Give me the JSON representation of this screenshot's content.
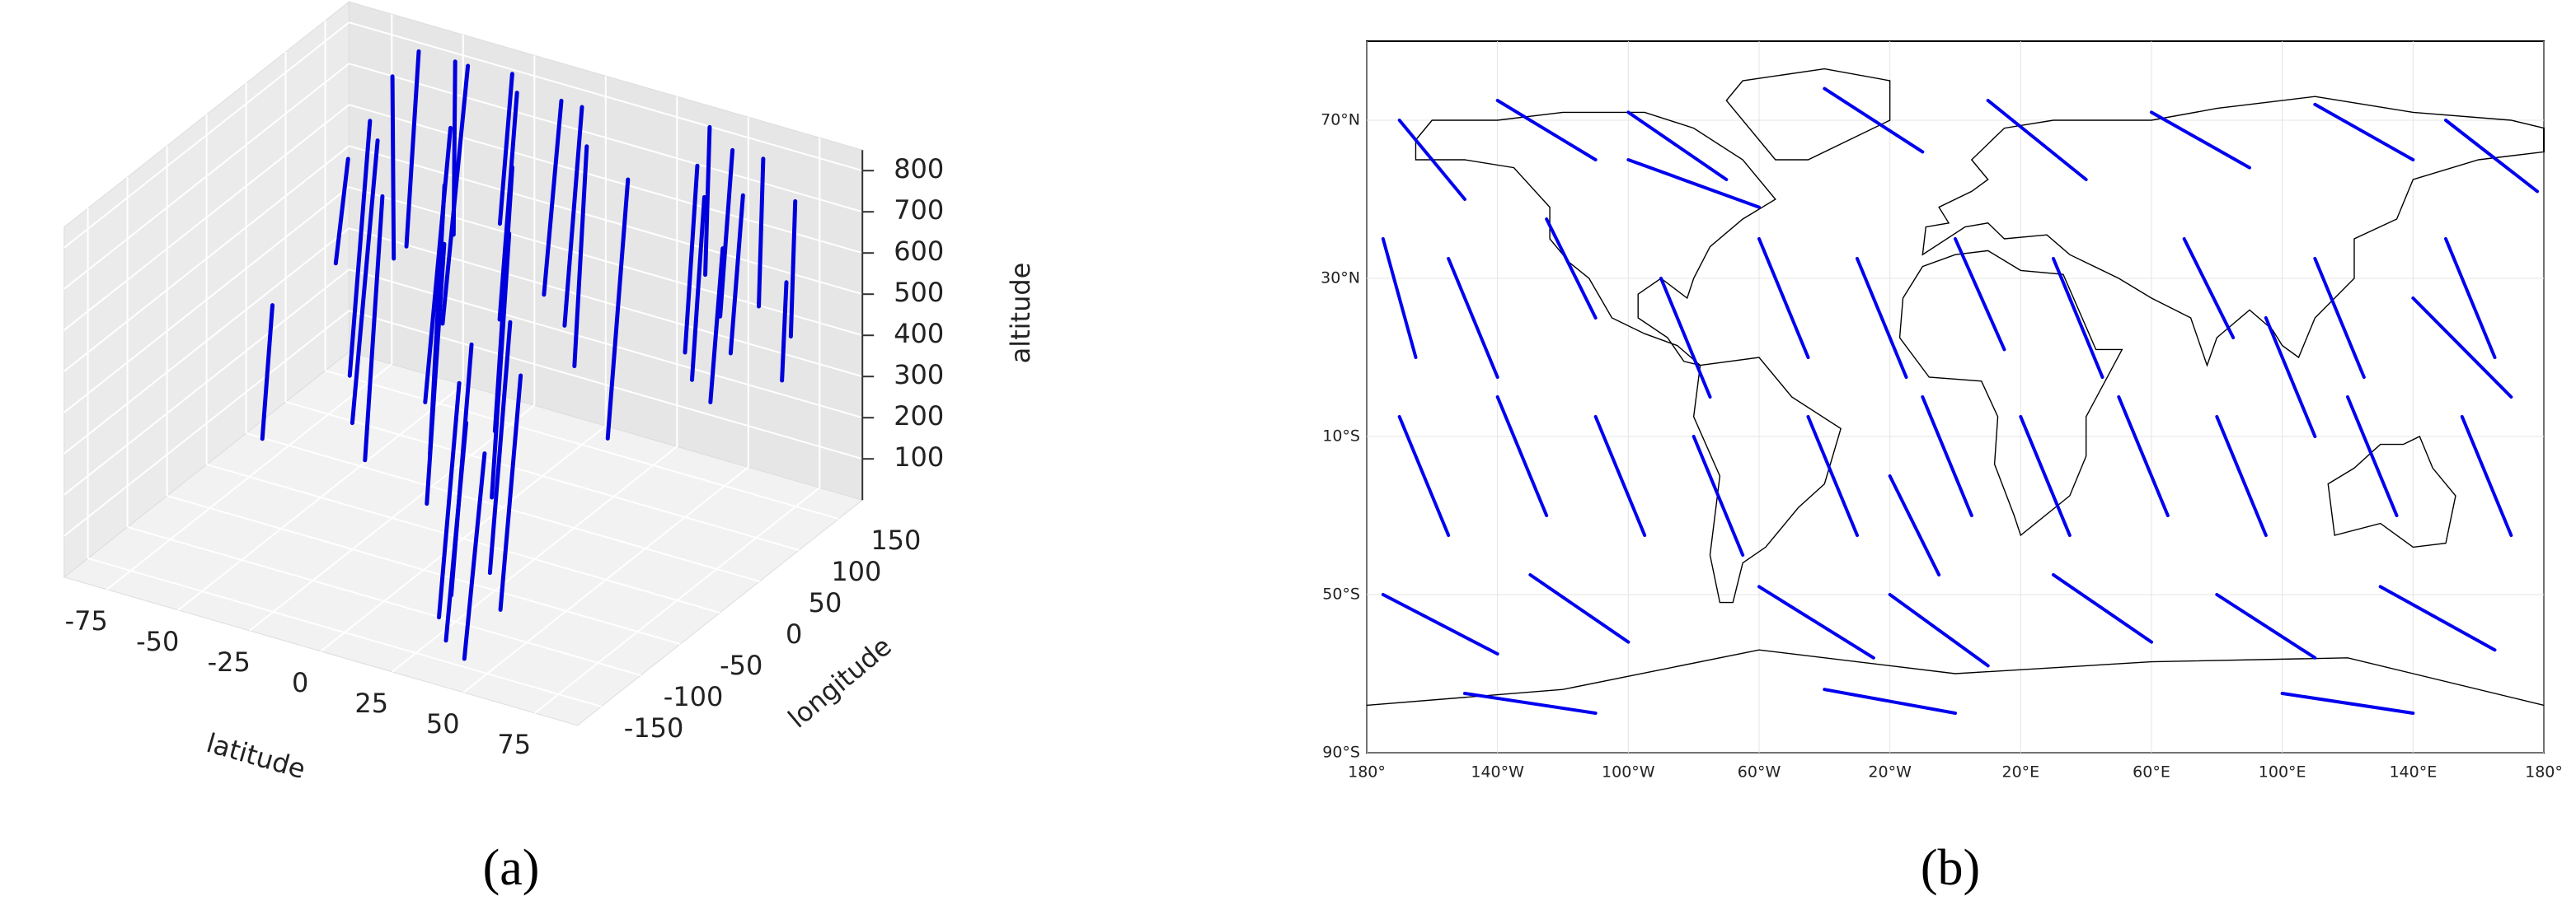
{
  "chart_data": [
    {
      "type": "line3d",
      "caption": "(a)",
      "xlabel": "latitude",
      "ylabel": "longitude",
      "zlabel": "altitude",
      "xlim": [
        -90,
        90
      ],
      "ylim": [
        -180,
        180
      ],
      "zlim": [
        0,
        850
      ],
      "xticks": [
        -75,
        -50,
        -25,
        0,
        25,
        50,
        75
      ],
      "yticks": [
        -150,
        -100,
        -50,
        0,
        50,
        100,
        150
      ],
      "zticks": [
        100,
        200,
        300,
        400,
        500,
        600,
        700,
        800
      ],
      "grid": true,
      "color": "#0000dd",
      "tracks": [
        {
          "lat": [
            -82,
            -78
          ],
          "lon": [
            150,
            120
          ],
          "alt": [
            530,
            330
          ]
        },
        {
          "lat": [
            -78,
            -76
          ],
          "lon": [
            40,
            20
          ],
          "alt": [
            350,
            60
          ]
        },
        {
          "lat": [
            -72,
            -66
          ],
          "lon": [
            170,
            150
          ],
          "alt": [
            720,
            320
          ]
        },
        {
          "lat": [
            -66,
            -62
          ],
          "lon": [
            120,
            80
          ],
          "alt": [
            700,
            150
          ]
        },
        {
          "lat": [
            -60,
            -56
          ],
          "lon": [
            160,
            130
          ],
          "alt": [
            820,
            400
          ]
        },
        {
          "lat": [
            -55,
            -50
          ],
          "lon": [
            90,
            40
          ],
          "alt": [
            720,
            120
          ]
        },
        {
          "lat": [
            -50,
            -45
          ],
          "lon": [
            170,
            150
          ],
          "alt": [
            800,
            420
          ]
        },
        {
          "lat": [
            -45,
            -40
          ],
          "lon": [
            60,
            20
          ],
          "alt": [
            650,
            80
          ]
        },
        {
          "lat": [
            -40,
            -35
          ],
          "lon": [
            150,
            100
          ],
          "alt": [
            840,
            300
          ]
        },
        {
          "lat": [
            -35,
            -30
          ],
          "lon": [
            110,
            60
          ],
          "alt": [
            760,
            180
          ]
        },
        {
          "lat": [
            -30,
            -26
          ],
          "lon": [
            170,
            140
          ],
          "alt": [
            810,
            500
          ]
        },
        {
          "lat": [
            -26,
            -20
          ],
          "lon": [
            70,
            30
          ],
          "alt": [
            700,
            120
          ]
        },
        {
          "lat": [
            -20,
            -15
          ],
          "lon": [
            140,
            100
          ],
          "alt": [
            830,
            350
          ]
        },
        {
          "lat": [
            -15,
            -10
          ],
          "lon": [
            30,
            -10
          ],
          "alt": [
            640,
            80
          ]
        },
        {
          "lat": [
            -10,
            -5
          ],
          "lon": [
            160,
            120
          ],
          "alt": [
            800,
            400
          ]
        },
        {
          "lat": [
            -5,
            0
          ],
          "lon": [
            80,
            40
          ],
          "alt": [
            770,
            200
          ]
        },
        {
          "lat": [
            0,
            5
          ],
          "lon": [
            150,
            110
          ],
          "alt": [
            820,
            360
          ]
        },
        {
          "lat": [
            5,
            10
          ],
          "lon": [
            40,
            0
          ],
          "alt": [
            690,
            120
          ]
        },
        {
          "lat": [
            10,
            14
          ],
          "lon": [
            120,
            90
          ],
          "alt": [
            790,
            310
          ]
        },
        {
          "lat": [
            14,
            18
          ],
          "lon": [
            -40,
            -80
          ],
          "alt": [
            560,
            20
          ]
        },
        {
          "lat": [
            18,
            22
          ],
          "lon": [
            -70,
            -110
          ],
          "alt": [
            520,
            20
          ]
        },
        {
          "lat": [
            22,
            26
          ],
          "lon": [
            -20,
            -60
          ],
          "alt": [
            600,
            60
          ]
        },
        {
          "lat": [
            26,
            30
          ],
          "lon": [
            -90,
            -130
          ],
          "alt": [
            470,
            10
          ]
        },
        {
          "lat": [
            30,
            34
          ],
          "lon": [
            100,
            60
          ],
          "alt": [
            780,
            220
          ]
        },
        {
          "lat": [
            34,
            38
          ],
          "lon": [
            -50,
            -90
          ],
          "alt": [
            540,
            40
          ]
        },
        {
          "lat": [
            38,
            42
          ],
          "lon": [
            -110,
            -150
          ],
          "alt": [
            450,
            20
          ]
        },
        {
          "lat": [
            42,
            46
          ],
          "lon": [
            160,
            140
          ],
          "alt": [
            840,
            520
          ]
        },
        {
          "lat": [
            46,
            50
          ],
          "lon": [
            130,
            100
          ],
          "alt": [
            800,
            400
          ]
        },
        {
          "lat": [
            50,
            54
          ],
          "lon": [
            160,
            130
          ],
          "alt": [
            800,
            450
          ]
        },
        {
          "lat": [
            54,
            58
          ],
          "lon": [
            110,
            80
          ],
          "alt": [
            770,
            380
          ]
        },
        {
          "lat": [
            58,
            62
          ],
          "lon": [
            170,
            150
          ],
          "alt": [
            780,
            460
          ]
        },
        {
          "lat": [
            62,
            66
          ],
          "lon": [
            130,
            100
          ],
          "alt": [
            760,
            430
          ]
        },
        {
          "lat": [
            66,
            70
          ],
          "lon": [
            90,
            60
          ],
          "alt": [
            700,
            380
          ]
        },
        {
          "lat": [
            72,
            76
          ],
          "lon": [
            160,
            140
          ],
          "alt": [
            720,
            430
          ]
        },
        {
          "lat": [
            80,
            84
          ],
          "lon": [
            120,
            100
          ],
          "alt": [
            600,
            400
          ]
        }
      ]
    },
    {
      "type": "map",
      "caption": "(b)",
      "xlim": [
        -180,
        180
      ],
      "ylim": [
        -90,
        90
      ],
      "xticks": [
        {
          "value": -180,
          "label": "180°"
        },
        {
          "value": -140,
          "label": "140°W"
        },
        {
          "value": -100,
          "label": "100°W"
        },
        {
          "value": -60,
          "label": "60°W"
        },
        {
          "value": -20,
          "label": "20°W"
        },
        {
          "value": 20,
          "label": "20°E"
        },
        {
          "value": 60,
          "label": "60°E"
        },
        {
          "value": 100,
          "label": "100°E"
        },
        {
          "value": 140,
          "label": "140°E"
        },
        {
          "value": 180,
          "label": "180°"
        }
      ],
      "yticks": [
        {
          "value": 70,
          "label": "70°N"
        },
        {
          "value": 30,
          "label": "30°N"
        },
        {
          "value": -10,
          "label": "10°S"
        },
        {
          "value": -50,
          "label": "50°S"
        },
        {
          "value": -90,
          "label": "90°S"
        }
      ],
      "grid": true,
      "color": "#0000ee",
      "tracks": [
        {
          "lon": [
            -170,
            -150
          ],
          "lat": [
            70,
            50
          ]
        },
        {
          "lon": [
            -140,
            -110
          ],
          "lat": [
            75,
            60
          ]
        },
        {
          "lon": [
            -100,
            -70
          ],
          "lat": [
            72,
            55
          ]
        },
        {
          "lon": [
            -40,
            -10
          ],
          "lat": [
            78,
            62
          ]
        },
        {
          "lon": [
            10,
            40
          ],
          "lat": [
            75,
            55
          ]
        },
        {
          "lon": [
            60,
            90
          ],
          "lat": [
            72,
            58
          ]
        },
        {
          "lon": [
            110,
            140
          ],
          "lat": [
            74,
            60
          ]
        },
        {
          "lon": [
            150,
            178
          ],
          "lat": [
            70,
            52
          ]
        },
        {
          "lon": [
            -175,
            -165
          ],
          "lat": [
            40,
            10
          ]
        },
        {
          "lon": [
            -155,
            -140
          ],
          "lat": [
            35,
            5
          ]
        },
        {
          "lon": [
            -125,
            -110
          ],
          "lat": [
            45,
            20
          ]
        },
        {
          "lon": [
            -90,
            -75
          ],
          "lat": [
            30,
            0
          ]
        },
        {
          "lon": [
            -60,
            -45
          ],
          "lat": [
            40,
            10
          ]
        },
        {
          "lon": [
            -30,
            -15
          ],
          "lat": [
            35,
            5
          ]
        },
        {
          "lon": [
            0,
            15
          ],
          "lat": [
            40,
            12
          ]
        },
        {
          "lon": [
            30,
            45
          ],
          "lat": [
            35,
            5
          ]
        },
        {
          "lon": [
            70,
            85
          ],
          "lat": [
            40,
            15
          ]
        },
        {
          "lon": [
            110,
            125
          ],
          "lat": [
            35,
            5
          ]
        },
        {
          "lon": [
            150,
            165
          ],
          "lat": [
            40,
            10
          ]
        },
        {
          "lon": [
            -170,
            -155
          ],
          "lat": [
            -5,
            -35
          ]
        },
        {
          "lon": [
            -140,
            -125
          ],
          "lat": [
            0,
            -30
          ]
        },
        {
          "lon": [
            -110,
            -95
          ],
          "lat": [
            -5,
            -35
          ]
        },
        {
          "lon": [
            -80,
            -65
          ],
          "lat": [
            -10,
            -40
          ]
        },
        {
          "lon": [
            -45,
            -30
          ],
          "lat": [
            -5,
            -35
          ]
        },
        {
          "lon": [
            -10,
            5
          ],
          "lat": [
            0,
            -30
          ]
        },
        {
          "lon": [
            20,
            35
          ],
          "lat": [
            -5,
            -35
          ]
        },
        {
          "lon": [
            50,
            65
          ],
          "lat": [
            0,
            -30
          ]
        },
        {
          "lon": [
            80,
            95
          ],
          "lat": [
            -5,
            -35
          ]
        },
        {
          "lon": [
            120,
            135
          ],
          "lat": [
            0,
            -30
          ]
        },
        {
          "lon": [
            155,
            170
          ],
          "lat": [
            -5,
            -35
          ]
        },
        {
          "lon": [
            -175,
            -140
          ],
          "lat": [
            -50,
            -65
          ]
        },
        {
          "lon": [
            -130,
            -100
          ],
          "lat": [
            -45,
            -62
          ]
        },
        {
          "lon": [
            -60,
            -25
          ],
          "lat": [
            -48,
            -66
          ]
        },
        {
          "lon": [
            -20,
            10
          ],
          "lat": [
            -50,
            -68
          ]
        },
        {
          "lon": [
            30,
            60
          ],
          "lat": [
            -45,
            -62
          ]
        },
        {
          "lon": [
            80,
            110
          ],
          "lat": [
            -50,
            -66
          ]
        },
        {
          "lon": [
            130,
            165
          ],
          "lat": [
            -48,
            -64
          ]
        },
        {
          "lon": [
            -150,
            -110
          ],
          "lat": [
            -75,
            -80
          ]
        },
        {
          "lon": [
            -40,
            0
          ],
          "lat": [
            -74,
            -80
          ]
        },
        {
          "lon": [
            100,
            140
          ],
          "lat": [
            -75,
            -80
          ]
        },
        {
          "lon": [
            -100,
            -60
          ],
          "lat": [
            60,
            48
          ]
        },
        {
          "lon": [
            140,
            170
          ],
          "lat": [
            25,
            0
          ]
        },
        {
          "lon": [
            -20,
            -5
          ],
          "lat": [
            -20,
            -45
          ]
        },
        {
          "lon": [
            95,
            110
          ],
          "lat": [
            20,
            -10
          ]
        }
      ]
    }
  ]
}
